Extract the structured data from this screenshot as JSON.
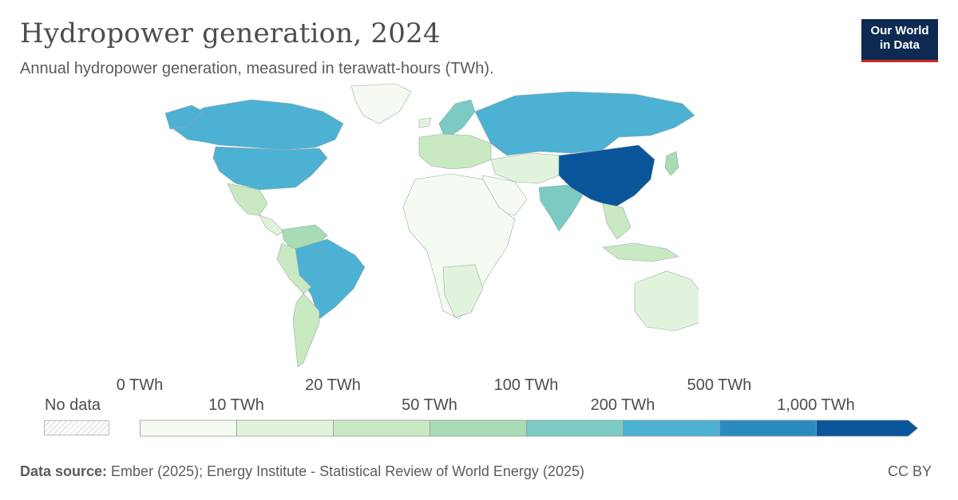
{
  "header": {
    "title": "Hydropower generation, 2024",
    "subtitle": "Annual hydropower generation, measured in terawatt-hours (TWh)."
  },
  "logo": {
    "line1": "Our World",
    "line2": "in Data",
    "bg_color": "#0e2a52",
    "accent_color": "#ce261e"
  },
  "legend": {
    "no_data_label": "No data",
    "upper_ticks": [
      "0 TWh",
      "20 TWh",
      "100 TWh",
      "500 TWh"
    ],
    "lower_ticks": [
      "10 TWh",
      "50 TWh",
      "200 TWh",
      "1,000 TWh"
    ],
    "bins": [
      {
        "from": 0,
        "to": 10,
        "color": "#f5fbf2"
      },
      {
        "from": 10,
        "to": 20,
        "color": "#e1f3dc"
      },
      {
        "from": 20,
        "to": 50,
        "color": "#c9e9c2"
      },
      {
        "from": 50,
        "to": 100,
        "color": "#a8dcb5"
      },
      {
        "from": 100,
        "to": 200,
        "color": "#7bcbc4"
      },
      {
        "from": 200,
        "to": 500,
        "color": "#4cb1d3"
      },
      {
        "from": 500,
        "to": 1000,
        "color": "#2b8bbe"
      },
      {
        "from": 1000,
        "to": null,
        "color": "#0a559a"
      }
    ]
  },
  "map_regions": [
    {
      "name": "China",
      "bin": 7
    },
    {
      "name": "Canada",
      "bin": 5
    },
    {
      "name": "United States",
      "bin": 5
    },
    {
      "name": "Brazil",
      "bin": 5
    },
    {
      "name": "Russia",
      "bin": 5
    },
    {
      "name": "India",
      "bin": 4
    },
    {
      "name": "Norway",
      "bin": 4
    }
  ],
  "footer": {
    "source_label": "Data source:",
    "source_text": " Ember (2025); Energy Institute - Statistical Review of World Energy (2025)",
    "license": "CC BY"
  }
}
